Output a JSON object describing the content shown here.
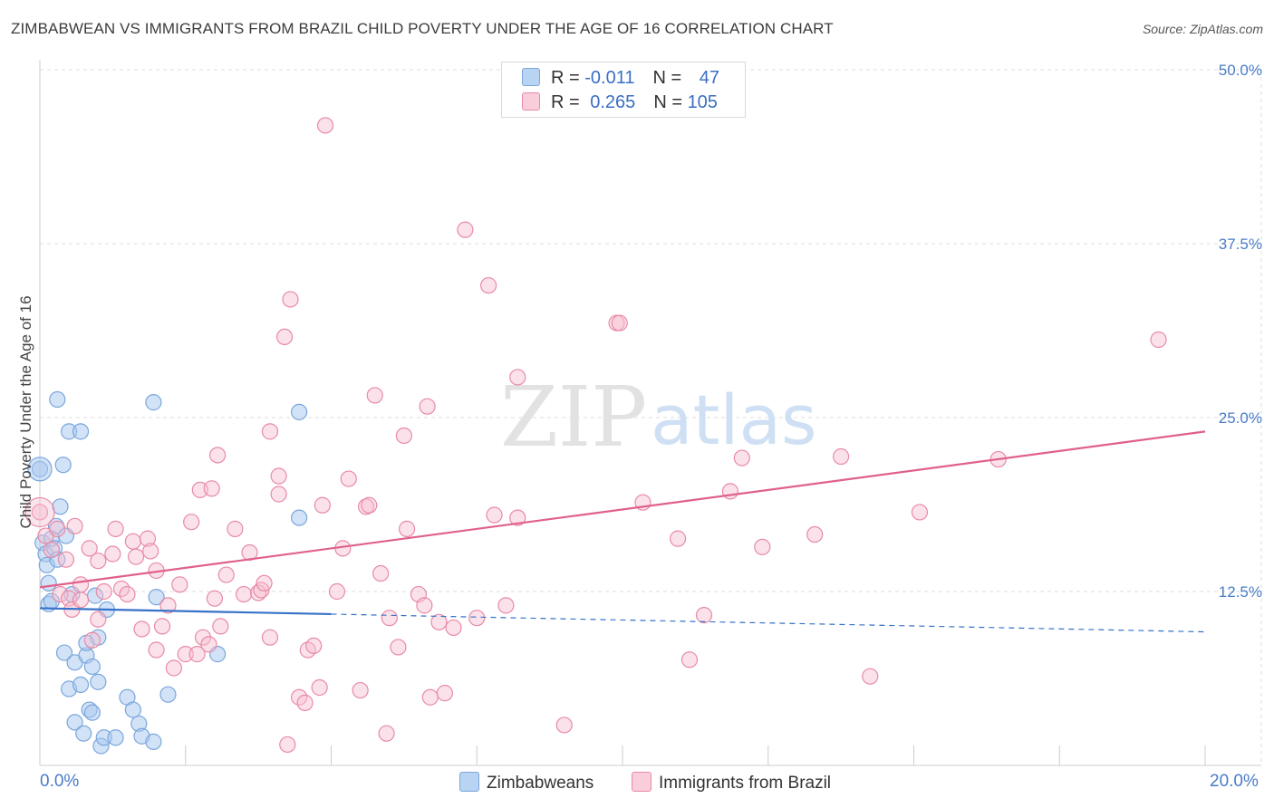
{
  "title": "ZIMBABWEAN VS IMMIGRANTS FROM BRAZIL CHILD POVERTY UNDER THE AGE OF 16 CORRELATION CHART",
  "source": "Source: ZipAtlas.com",
  "watermark": {
    "zip": "ZIP",
    "atlas": "atlas"
  },
  "legend": {
    "rows": [
      {
        "r_label": "R = ",
        "r_value": "-0.011",
        "n_label": "N = ",
        "n_value": "47"
      },
      {
        "r_label": "R = ",
        "r_value": "0.265",
        "n_label": "N = ",
        "n_value": "105"
      }
    ]
  },
  "bottom_legend": [
    "Zimbabweans",
    "Immigrants from Brazil"
  ],
  "colors": {
    "blue_fill": "#a8c8f0",
    "blue_stroke": "#7aa6dc",
    "blue_line": "#3672c9",
    "pink_fill": "#f6bfd0",
    "pink_stroke": "#e88aa6",
    "pink_line": "#e0608a",
    "grid": "#dddddd",
    "axis_text": "#4a7cc7"
  },
  "chart_data": {
    "type": "scatter",
    "title": "ZIMBABWEAN VS IMMIGRANTS FROM BRAZIL CHILD POVERTY UNDER THE AGE OF 16 CORRELATION CHART",
    "xlabel": "",
    "ylabel": "Child Poverty Under the Age of 16",
    "xlim": [
      0,
      20
    ],
    "ylim": [
      0,
      50
    ],
    "x_tick_labels": [
      "0.0%",
      "20.0%"
    ],
    "y_ticks": [
      12.5,
      25.0,
      37.5,
      50.0
    ],
    "y_tick_labels": [
      "12.5%",
      "25.0%",
      "37.5%",
      "50.0%"
    ],
    "grid": true,
    "series": [
      {
        "name": "Zimbabweans",
        "R": -0.011,
        "N": 47,
        "trend": {
          "x0": 0.0,
          "y0": 11.3,
          "x1": 20.0,
          "y1": 9.6,
          "solid_until_x": 5.0
        },
        "points": [
          [
            0.0,
            21.3
          ],
          [
            0.05,
            16.0
          ],
          [
            0.1,
            15.2
          ],
          [
            0.12,
            14.4
          ],
          [
            0.15,
            13.1
          ],
          [
            0.15,
            11.6
          ],
          [
            0.2,
            16.3
          ],
          [
            0.25,
            15.6
          ],
          [
            0.28,
            17.2
          ],
          [
            0.3,
            26.3
          ],
          [
            0.35,
            18.6
          ],
          [
            0.4,
            21.6
          ],
          [
            0.42,
            8.1
          ],
          [
            0.45,
            16.5
          ],
          [
            0.5,
            24.0
          ],
          [
            0.5,
            5.5
          ],
          [
            0.55,
            12.3
          ],
          [
            0.6,
            3.1
          ],
          [
            0.6,
            7.4
          ],
          [
            0.7,
            24.0
          ],
          [
            0.7,
            5.8
          ],
          [
            0.75,
            2.3
          ],
          [
            0.8,
            7.9
          ],
          [
            0.8,
            8.8
          ],
          [
            0.85,
            4.0
          ],
          [
            0.9,
            3.8
          ],
          [
            0.9,
            7.1
          ],
          [
            0.95,
            12.2
          ],
          [
            1.0,
            9.2
          ],
          [
            1.0,
            6.0
          ],
          [
            1.05,
            1.4
          ],
          [
            1.1,
            2.0
          ],
          [
            1.15,
            11.2
          ],
          [
            1.3,
            2.0
          ],
          [
            1.5,
            4.9
          ],
          [
            1.6,
            4.0
          ],
          [
            1.7,
            3.0
          ],
          [
            1.75,
            2.1
          ],
          [
            1.95,
            1.7
          ],
          [
            1.95,
            26.1
          ],
          [
            2.0,
            12.1
          ],
          [
            2.2,
            5.1
          ],
          [
            3.05,
            8.0
          ],
          [
            4.45,
            25.4
          ],
          [
            4.45,
            17.8
          ],
          [
            0.2,
            11.8
          ],
          [
            0.3,
            14.8
          ]
        ]
      },
      {
        "name": "Immigrants from Brazil",
        "R": 0.265,
        "N": 105,
        "trend": {
          "x0": 0.0,
          "y0": 12.8,
          "x1": 20.0,
          "y1": 24.0
        },
        "points": [
          [
            0.0,
            18.2
          ],
          [
            0.1,
            16.5
          ],
          [
            0.2,
            15.5
          ],
          [
            0.3,
            17.0
          ],
          [
            0.35,
            12.3
          ],
          [
            0.45,
            14.8
          ],
          [
            0.5,
            12.0
          ],
          [
            0.55,
            11.2
          ],
          [
            0.7,
            11.9
          ],
          [
            0.7,
            13.0
          ],
          [
            0.85,
            15.6
          ],
          [
            0.9,
            9.0
          ],
          [
            1.0,
            14.7
          ],
          [
            1.1,
            12.5
          ],
          [
            1.25,
            15.2
          ],
          [
            1.3,
            17.0
          ],
          [
            1.4,
            12.7
          ],
          [
            1.5,
            12.3
          ],
          [
            1.6,
            16.1
          ],
          [
            1.65,
            15.0
          ],
          [
            1.75,
            9.8
          ],
          [
            1.85,
            16.3
          ],
          [
            1.9,
            15.4
          ],
          [
            2.0,
            8.3
          ],
          [
            2.0,
            14.0
          ],
          [
            2.1,
            10.0
          ],
          [
            2.2,
            11.5
          ],
          [
            2.3,
            7.0
          ],
          [
            2.4,
            13.0
          ],
          [
            2.5,
            8.0
          ],
          [
            2.6,
            17.5
          ],
          [
            2.7,
            8.0
          ],
          [
            2.75,
            19.8
          ],
          [
            2.8,
            9.2
          ],
          [
            2.9,
            8.7
          ],
          [
            2.95,
            19.9
          ],
          [
            3.05,
            22.3
          ],
          [
            3.1,
            10.0
          ],
          [
            3.2,
            13.7
          ],
          [
            3.35,
            17.0
          ],
          [
            3.5,
            12.3
          ],
          [
            3.6,
            15.3
          ],
          [
            3.75,
            12.4
          ],
          [
            3.8,
            12.6
          ],
          [
            3.85,
            13.1
          ],
          [
            3.95,
            9.2
          ],
          [
            3.95,
            24.0
          ],
          [
            4.1,
            20.8
          ],
          [
            4.1,
            19.5
          ],
          [
            4.2,
            30.8
          ],
          [
            4.25,
            1.5
          ],
          [
            4.3,
            33.5
          ],
          [
            4.45,
            4.9
          ],
          [
            4.55,
            4.5
          ],
          [
            4.6,
            8.3
          ],
          [
            4.7,
            8.6
          ],
          [
            4.8,
            5.6
          ],
          [
            4.85,
            18.7
          ],
          [
            4.9,
            46.0
          ],
          [
            5.1,
            12.5
          ],
          [
            5.2,
            15.6
          ],
          [
            5.3,
            20.6
          ],
          [
            5.5,
            5.4
          ],
          [
            5.6,
            18.6
          ],
          [
            5.65,
            18.7
          ],
          [
            5.75,
            26.6
          ],
          [
            5.85,
            13.8
          ],
          [
            5.95,
            2.3
          ],
          [
            6.0,
            10.6
          ],
          [
            6.15,
            8.5
          ],
          [
            6.25,
            23.7
          ],
          [
            6.3,
            17.0
          ],
          [
            6.5,
            12.3
          ],
          [
            6.6,
            11.5
          ],
          [
            6.65,
            25.8
          ],
          [
            6.7,
            4.9
          ],
          [
            6.85,
            10.3
          ],
          [
            6.95,
            5.2
          ],
          [
            7.1,
            9.9
          ],
          [
            7.3,
            38.5
          ],
          [
            7.5,
            10.6
          ],
          [
            7.7,
            34.5
          ],
          [
            7.8,
            18.0
          ],
          [
            8.0,
            11.5
          ],
          [
            8.2,
            17.8
          ],
          [
            8.2,
            27.9
          ],
          [
            9.0,
            2.9
          ],
          [
            9.9,
            31.8
          ],
          [
            9.95,
            31.8
          ],
          [
            10.35,
            18.9
          ],
          [
            10.95,
            16.3
          ],
          [
            11.15,
            7.6
          ],
          [
            11.4,
            10.8
          ],
          [
            11.85,
            19.7
          ],
          [
            12.05,
            22.1
          ],
          [
            12.4,
            15.7
          ],
          [
            13.3,
            16.6
          ],
          [
            13.75,
            22.2
          ],
          [
            14.25,
            6.4
          ],
          [
            15.1,
            18.2
          ],
          [
            16.45,
            22.0
          ],
          [
            19.2,
            30.6
          ],
          [
            0.6,
            17.2
          ],
          [
            1.0,
            10.5
          ],
          [
            3.0,
            12.0
          ]
        ]
      }
    ]
  }
}
